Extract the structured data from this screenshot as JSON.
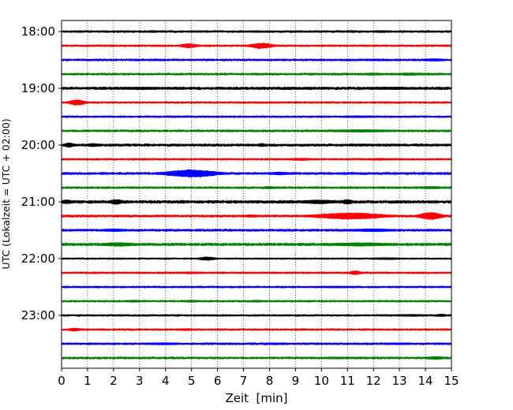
{
  "chart_data": {
    "type": "line",
    "title": "",
    "xlabel": "Zeit  [min]",
    "ylabel": "UTC (Lokalzeit = UTC + 02:00)",
    "xlim": [
      0,
      15
    ],
    "x_ticks": [
      "0",
      "1",
      "2",
      "3",
      "4",
      "5",
      "6",
      "7",
      "8",
      "9",
      "10",
      "11",
      "12",
      "13",
      "14",
      "15"
    ],
    "y_tick_labels": [
      "18:00",
      "19:00",
      "20:00",
      "21:00",
      "22:00",
      "23:00"
    ],
    "grid": "vertical dotted lines at each minute",
    "legend": "none",
    "trace_colors_cycle": [
      "#000000",
      "#ff0000",
      "#0000ff",
      "#008000"
    ],
    "traces": [
      {
        "start": "18:00",
        "color": "#000000",
        "base_amp": 0.9,
        "bursts": [
          {
            "center": 3.5,
            "width": 0.3,
            "amp": 1.3
          },
          {
            "center": 7.5,
            "width": 0.4,
            "amp": 1.1
          },
          {
            "center": 12.3,
            "width": 0.4,
            "amp": 1.3
          }
        ]
      },
      {
        "start": "18:15",
        "color": "#ff0000",
        "base_amp": 0.8,
        "bursts": [
          {
            "center": 4.9,
            "width": 0.4,
            "amp": 2.8
          },
          {
            "center": 7.7,
            "width": 0.5,
            "amp": 3.6
          }
        ]
      },
      {
        "start": "18:30",
        "color": "#0000ff",
        "base_amp": 0.9,
        "bursts": [
          {
            "center": 12.0,
            "width": 0.5,
            "amp": 1.2
          },
          {
            "center": 14.3,
            "width": 0.6,
            "amp": 1.6
          }
        ]
      },
      {
        "start": "18:45",
        "color": "#008000",
        "base_amp": 0.9,
        "bursts": [
          {
            "center": 12.0,
            "width": 0.6,
            "amp": 1.4
          },
          {
            "center": 13.4,
            "width": 0.6,
            "amp": 1.6
          }
        ]
      },
      {
        "start": "19:00",
        "color": "#000000",
        "base_amp": 1.2,
        "bursts": [
          {
            "center": 3.0,
            "width": 1.2,
            "amp": 1.6
          },
          {
            "center": 12.7,
            "width": 1.5,
            "amp": 1.6
          }
        ]
      },
      {
        "start": "19:15",
        "color": "#ff0000",
        "base_amp": 0.8,
        "bursts": [
          {
            "center": 0.6,
            "width": 0.35,
            "amp": 3.6
          },
          {
            "center": 12.5,
            "width": 0.5,
            "amp": 1.0
          }
        ]
      },
      {
        "start": "19:30",
        "color": "#0000ff",
        "base_amp": 0.8,
        "bursts": [
          {
            "center": 11.5,
            "width": 1.2,
            "amp": 1.2
          }
        ]
      },
      {
        "start": "19:45",
        "color": "#008000",
        "base_amp": 0.9,
        "bursts": [
          {
            "center": 6.5,
            "width": 0.6,
            "amp": 1.1
          },
          {
            "center": 11.5,
            "width": 1.6,
            "amp": 1.6
          }
        ]
      },
      {
        "start": "20:00",
        "color": "#000000",
        "base_amp": 1.1,
        "bursts": [
          {
            "center": 0.3,
            "width": 0.25,
            "amp": 2.8
          },
          {
            "center": 1.2,
            "width": 0.3,
            "amp": 2.2
          },
          {
            "center": 7.7,
            "width": 0.2,
            "amp": 2.2
          }
        ]
      },
      {
        "start": "20:15",
        "color": "#ff0000",
        "base_amp": 0.8,
        "bursts": [
          {
            "center": 9.2,
            "width": 0.6,
            "amp": 1.5
          },
          {
            "center": 12.2,
            "width": 0.6,
            "amp": 1.3
          }
        ]
      },
      {
        "start": "20:30",
        "color": "#0000ff",
        "base_amp": 1.0,
        "bursts": [
          {
            "center": 5.0,
            "width": 1.1,
            "amp": 5.0
          },
          {
            "center": 8.4,
            "width": 0.5,
            "amp": 1.9
          }
        ]
      },
      {
        "start": "20:45",
        "color": "#008000",
        "base_amp": 0.9,
        "bursts": [
          {
            "center": 8.0,
            "width": 0.3,
            "amp": 1.6
          },
          {
            "center": 14.2,
            "width": 0.6,
            "amp": 1.6
          }
        ]
      },
      {
        "start": "21:00",
        "color": "#000000",
        "base_amp": 1.3,
        "bursts": [
          {
            "center": 0.2,
            "width": 0.3,
            "amp": 2.6
          },
          {
            "center": 2.1,
            "width": 0.3,
            "amp": 3.2
          },
          {
            "center": 9.9,
            "width": 0.8,
            "amp": 2.6
          },
          {
            "center": 11.0,
            "width": 0.25,
            "amp": 3.2
          }
        ]
      },
      {
        "start": "21:15",
        "color": "#ff0000",
        "base_amp": 1.0,
        "bursts": [
          {
            "center": 7.3,
            "width": 0.4,
            "amp": 1.6
          },
          {
            "center": 11.1,
            "width": 1.5,
            "amp": 4.2
          },
          {
            "center": 14.2,
            "width": 0.5,
            "amp": 4.6
          }
        ]
      },
      {
        "start": "21:30",
        "color": "#0000ff",
        "base_amp": 1.0,
        "bursts": [
          {
            "center": 2.0,
            "width": 0.6,
            "amp": 1.8
          },
          {
            "center": 12.0,
            "width": 1.0,
            "amp": 1.9
          }
        ]
      },
      {
        "start": "21:45",
        "color": "#008000",
        "base_amp": 1.2,
        "bursts": [
          {
            "center": 2.2,
            "width": 0.8,
            "amp": 2.4
          },
          {
            "center": 11.5,
            "width": 1.6,
            "amp": 2.2
          }
        ]
      },
      {
        "start": "22:00",
        "color": "#000000",
        "base_amp": 0.7,
        "bursts": [
          {
            "center": 5.6,
            "width": 0.4,
            "amp": 2.2
          },
          {
            "center": 12.5,
            "width": 0.8,
            "amp": 1.3
          }
        ]
      },
      {
        "start": "22:15",
        "color": "#ff0000",
        "base_amp": 0.8,
        "bursts": [
          {
            "center": 5.0,
            "width": 0.6,
            "amp": 1.3
          },
          {
            "center": 11.3,
            "width": 0.25,
            "amp": 2.6
          }
        ]
      },
      {
        "start": "22:30",
        "color": "#0000ff",
        "base_amp": 0.8,
        "bursts": [
          {
            "center": 10.5,
            "width": 1.5,
            "amp": 1.1
          }
        ]
      },
      {
        "start": "22:45",
        "color": "#008000",
        "base_amp": 0.8,
        "bursts": [
          {
            "center": 2.8,
            "width": 0.4,
            "amp": 1.4
          },
          {
            "center": 5.0,
            "width": 0.4,
            "amp": 1.3
          },
          {
            "center": 7.5,
            "width": 0.4,
            "amp": 1.3
          }
        ]
      },
      {
        "start": "23:00",
        "color": "#000000",
        "base_amp": 0.8,
        "bursts": [
          {
            "center": 13.5,
            "width": 0.8,
            "amp": 1.3
          },
          {
            "center": 14.6,
            "width": 0.3,
            "amp": 1.6
          }
        ]
      },
      {
        "start": "23:15",
        "color": "#ff0000",
        "base_amp": 0.8,
        "bursts": [
          {
            "center": 0.5,
            "width": 0.3,
            "amp": 2.0
          },
          {
            "center": 4.8,
            "width": 0.4,
            "amp": 1.3
          }
        ]
      },
      {
        "start": "23:30",
        "color": "#0000ff",
        "base_amp": 0.9,
        "bursts": [
          {
            "center": 3.9,
            "width": 0.8,
            "amp": 1.4
          },
          {
            "center": 8.2,
            "width": 0.8,
            "amp": 1.2
          },
          {
            "center": 12.9,
            "width": 0.8,
            "amp": 1.2
          }
        ]
      },
      {
        "start": "23:45",
        "color": "#008000",
        "base_amp": 0.9,
        "bursts": [
          {
            "center": 10.5,
            "width": 0.8,
            "amp": 1.2
          },
          {
            "center": 14.4,
            "width": 0.5,
            "amp": 1.9
          }
        ]
      }
    ]
  }
}
